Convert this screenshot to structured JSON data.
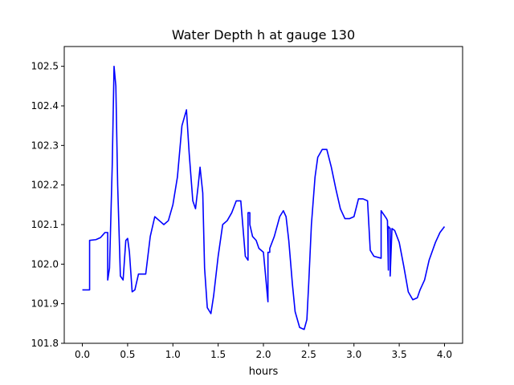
{
  "chart_data": {
    "type": "line",
    "title": "Water Depth h at gauge 130",
    "xlabel": "hours",
    "ylabel": "",
    "xlim": [
      -0.2,
      4.2
    ],
    "ylim": [
      101.8,
      102.55
    ],
    "x_ticks": [
      0.0,
      0.5,
      1.0,
      1.5,
      2.0,
      2.5,
      3.0,
      3.5,
      4.0
    ],
    "x_tick_labels": [
      "0.0",
      "0.5",
      "1.0",
      "1.5",
      "2.0",
      "2.5",
      "3.0",
      "3.5",
      "4.0"
    ],
    "y_ticks": [
      101.8,
      101.9,
      102.0,
      102.1,
      102.2,
      102.3,
      102.4,
      102.5
    ],
    "y_tick_labels": [
      "101.8",
      "101.9",
      "102.0",
      "102.1",
      "102.2",
      "102.3",
      "102.4",
      "102.5"
    ],
    "grid": false,
    "series": [
      {
        "color": "#0000ff",
        "x": [
          0.0,
          0.08,
          0.08,
          0.15,
          0.2,
          0.25,
          0.28,
          0.28,
          0.3,
          0.33,
          0.35,
          0.37,
          0.39,
          0.42,
          0.45,
          0.48,
          0.5,
          0.52,
          0.55,
          0.58,
          0.62,
          0.65,
          0.7,
          0.75,
          0.8,
          0.85,
          0.9,
          0.95,
          1.0,
          1.05,
          1.1,
          1.15,
          1.18,
          1.22,
          1.25,
          1.28,
          1.3,
          1.33,
          1.35,
          1.38,
          1.42,
          1.45,
          1.5,
          1.55,
          1.6,
          1.65,
          1.7,
          1.75,
          1.8,
          1.83,
          1.83,
          1.85,
          1.85,
          1.88,
          1.92,
          1.95,
          2.0,
          2.05,
          2.05,
          2.07,
          2.07,
          2.12,
          2.18,
          2.22,
          2.25,
          2.28,
          2.32,
          2.35,
          2.4,
          2.45,
          2.48,
          2.5,
          2.53,
          2.57,
          2.6,
          2.65,
          2.7,
          2.75,
          2.8,
          2.85,
          2.9,
          2.95,
          3.0,
          3.05,
          3.1,
          3.15,
          3.18,
          3.22,
          3.3,
          3.3,
          3.36,
          3.37,
          3.38,
          3.38,
          3.4,
          3.4,
          3.42,
          3.45,
          3.5,
          3.55,
          3.6,
          3.65,
          3.7,
          3.73,
          3.78,
          3.83,
          3.9,
          3.95,
          4.0
        ],
        "y": [
          101.935,
          101.935,
          102.06,
          102.062,
          102.067,
          102.08,
          102.08,
          101.96,
          101.99,
          102.25,
          102.5,
          102.45,
          102.2,
          101.97,
          101.96,
          102.06,
          102.065,
          102.03,
          101.93,
          101.935,
          101.975,
          101.975,
          101.975,
          102.07,
          102.12,
          102.11,
          102.1,
          102.11,
          102.15,
          102.22,
          102.35,
          102.39,
          102.28,
          102.16,
          102.14,
          102.2,
          102.245,
          102.18,
          101.99,
          101.89,
          101.875,
          101.92,
          102.02,
          102.1,
          102.11,
          102.13,
          102.16,
          102.16,
          102.02,
          102.01,
          102.13,
          102.13,
          102.1,
          102.07,
          102.06,
          102.04,
          102.03,
          101.905,
          102.03,
          102.03,
          102.04,
          102.07,
          102.12,
          102.135,
          102.12,
          102.06,
          101.95,
          101.88,
          101.84,
          101.835,
          101.86,
          101.95,
          102.1,
          102.22,
          102.27,
          102.29,
          102.29,
          102.245,
          102.19,
          102.14,
          102.115,
          102.115,
          102.12,
          102.165,
          102.165,
          102.16,
          102.035,
          102.02,
          102.015,
          102.135,
          102.115,
          102.11,
          101.985,
          102.095,
          102.09,
          101.97,
          102.09,
          102.085,
          102.055,
          101.995,
          101.93,
          101.91,
          101.915,
          101.935,
          101.96,
          102.01,
          102.055,
          102.08,
          102.095
        ]
      }
    ]
  }
}
